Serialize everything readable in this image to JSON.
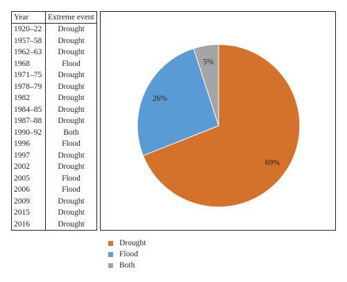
{
  "table": {
    "headers": [
      "Year",
      "Extreme event"
    ],
    "rows": [
      {
        "year": "1920–22",
        "event": "Drought"
      },
      {
        "year": "1957–58",
        "event": "Drought"
      },
      {
        "year": "1962–63",
        "event": "Drought"
      },
      {
        "year": "1968",
        "event": "Flood"
      },
      {
        "year": "1971–75",
        "event": "Drought"
      },
      {
        "year": "1978–79",
        "event": "Drought"
      },
      {
        "year": "1982",
        "event": "Drought"
      },
      {
        "year": "1984–85",
        "event": "Drought"
      },
      {
        "year": "1987–88",
        "event": "Drought"
      },
      {
        "year": "1990–92",
        "event": "Both"
      },
      {
        "year": "1996",
        "event": "Flood"
      },
      {
        "year": "1997",
        "event": "Drought"
      },
      {
        "year": "2002",
        "event": "Drought"
      },
      {
        "year": "2005",
        "event": "Flood"
      },
      {
        "year": "2006",
        "event": "Flood"
      },
      {
        "year": "2009",
        "event": "Drought"
      },
      {
        "year": "2015",
        "event": "Drought"
      },
      {
        "year": "2016",
        "event": "Drought"
      }
    ]
  },
  "chart_data": {
    "type": "pie",
    "categories": [
      "Drought",
      "Flood",
      "Both"
    ],
    "values": [
      69,
      26,
      5
    ],
    "labels": [
      "69%",
      "26%",
      "5%"
    ],
    "colors": [
      "#d4712a",
      "#5b9bd5",
      "#a5a5a5"
    ],
    "legend": {
      "position": "bottom",
      "entries": [
        "Drought",
        "Flood",
        "Both"
      ]
    }
  }
}
